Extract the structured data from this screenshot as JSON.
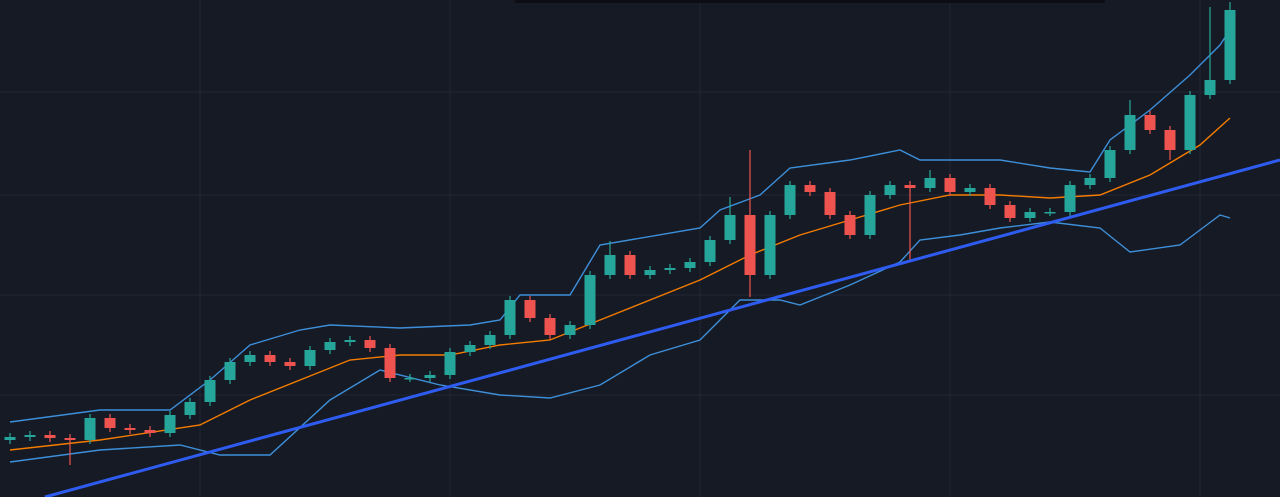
{
  "chart_data": {
    "type": "candlestick",
    "xlim": [
      -0.5,
      63.5
    ],
    "ylim": [
      0,
      497
    ],
    "xticks": [
      9.5,
      22,
      34.5,
      47,
      59.5
    ],
    "yticks": [
      102,
      202,
      302,
      405
    ],
    "grid": true,
    "up_color": "#26a69a",
    "down_color": "#ef5350",
    "x": [
      0,
      1,
      2,
      3,
      4,
      5,
      6,
      7,
      8,
      9,
      10,
      11,
      12,
      13,
      14,
      15,
      16,
      17,
      18,
      19,
      20,
      21,
      22,
      23,
      24,
      25,
      26,
      27,
      28,
      29,
      30,
      31,
      32,
      33,
      34,
      35,
      36,
      37,
      38,
      39,
      40,
      41,
      42,
      43,
      44,
      45,
      46,
      47,
      48,
      49,
      50,
      51,
      52,
      53,
      54,
      55,
      56,
      57,
      58,
      59,
      60,
      61
    ],
    "open": [
      57,
      60,
      62,
      59,
      57,
      79,
      69,
      67,
      64,
      82,
      95,
      117,
      135,
      142,
      135,
      131,
      147,
      155,
      157,
      149,
      119,
      119,
      122,
      145,
      152,
      162,
      197,
      179,
      162,
      172,
      222,
      242,
      222,
      227,
      229,
      235,
      257,
      282,
      222,
      282,
      312,
      305,
      282,
      262,
      302,
      312,
      309,
      319,
      305,
      309,
      292,
      279,
      285,
      285,
      312,
      319,
      347,
      382,
      367,
      347,
      402,
      417
    ],
    "high": [
      64,
      66,
      66,
      63,
      83,
      83,
      73,
      71,
      86,
      99,
      121,
      139,
      146,
      146,
      139,
      151,
      159,
      161,
      161,
      153,
      123,
      126,
      149,
      156,
      166,
      201,
      201,
      183,
      176,
      226,
      256,
      246,
      231,
      233,
      239,
      261,
      300,
      347,
      286,
      316,
      316,
      309,
      286,
      306,
      316,
      316,
      327,
      323,
      313,
      313,
      296,
      289,
      289,
      316,
      323,
      351,
      397,
      386,
      371,
      406,
      490,
      495
    ],
    "low": [
      53,
      56,
      55,
      32,
      53,
      65,
      63,
      60,
      60,
      78,
      91,
      113,
      131,
      131,
      127,
      127,
      143,
      151,
      145,
      115,
      115,
      115,
      118,
      141,
      148,
      158,
      175,
      158,
      158,
      168,
      218,
      218,
      218,
      223,
      225,
      231,
      253,
      200,
      218,
      278,
      301,
      278,
      258,
      258,
      298,
      237,
      305,
      301,
      301,
      288,
      275,
      275,
      281,
      281,
      308,
      315,
      343,
      363,
      337,
      343,
      398,
      413
    ],
    "close": [
      60,
      62,
      59,
      57,
      79,
      69,
      67,
      64,
      82,
      95,
      117,
      135,
      142,
      135,
      131,
      147,
      155,
      157,
      149,
      119,
      119,
      122,
      145,
      152,
      162,
      197,
      179,
      162,
      172,
      222,
      242,
      222,
      227,
      229,
      235,
      257,
      282,
      222,
      282,
      312,
      305,
      282,
      262,
      302,
      312,
      309,
      319,
      305,
      309,
      292,
      279,
      285,
      285,
      312,
      319,
      347,
      382,
      367,
      347,
      402,
      417,
      487
    ],
    "lines": [
      {
        "color": "#3d8fd9",
        "x": [
          0,
          4.5,
          8,
          10,
          12,
          14.5,
          16,
          19.5,
          23,
          24.5,
          25.5,
          28,
          29.5,
          34.5,
          35.5,
          37.5,
          39,
          42,
          44.5,
          45.5,
          49.5,
          52,
          54,
          55,
          57,
          59,
          60.5,
          61
        ],
        "values": [
          75,
          87,
          87,
          117,
          152,
          167,
          172,
          169,
          172,
          177,
          202,
          202,
          252,
          269,
          287,
          302,
          329,
          337,
          347,
          337,
          337,
          329,
          325,
          357,
          387,
          422,
          452,
          467
        ]
      },
      {
        "color": "#f57c00",
        "x": [
          0,
          4.5,
          9.5,
          12,
          14.5,
          17,
          19.5,
          22,
          24.5,
          27,
          29.5,
          34.5,
          37,
          39.5,
          42,
          44.5,
          47,
          49.5,
          52,
          54.5,
          57,
          59.5,
          61
        ],
        "values": [
          47,
          57,
          72,
          97,
          117,
          137,
          142,
          142,
          152,
          157,
          177,
          217,
          242,
          262,
          277,
          292,
          302,
          302,
          299,
          302,
          322,
          352,
          379
        ]
      },
      {
        "color": "#3d8fd9",
        "x": [
          0,
          4.5,
          8.5,
          10.5,
          13,
          16,
          18.5,
          21.5,
          24.5,
          27,
          29.5,
          32,
          34.5,
          36.5,
          38.5,
          39.5,
          42,
          44.5,
          45.5,
          47.5,
          49.5,
          52,
          54.5,
          56,
          58.5,
          60.5,
          61
        ],
        "values": [
          35,
          47,
          52,
          42,
          42,
          97,
          127,
          112,
          102,
          99,
          112,
          142,
          157,
          197,
          197,
          192,
          212,
          235,
          257,
          262,
          269,
          275,
          269,
          245,
          252,
          282,
          279
        ]
      }
    ],
    "trendline": {
      "color": "#2f5cf0",
      "x": [
        1.75,
        63.5
      ],
      "values": [
        0,
        337
      ]
    }
  }
}
